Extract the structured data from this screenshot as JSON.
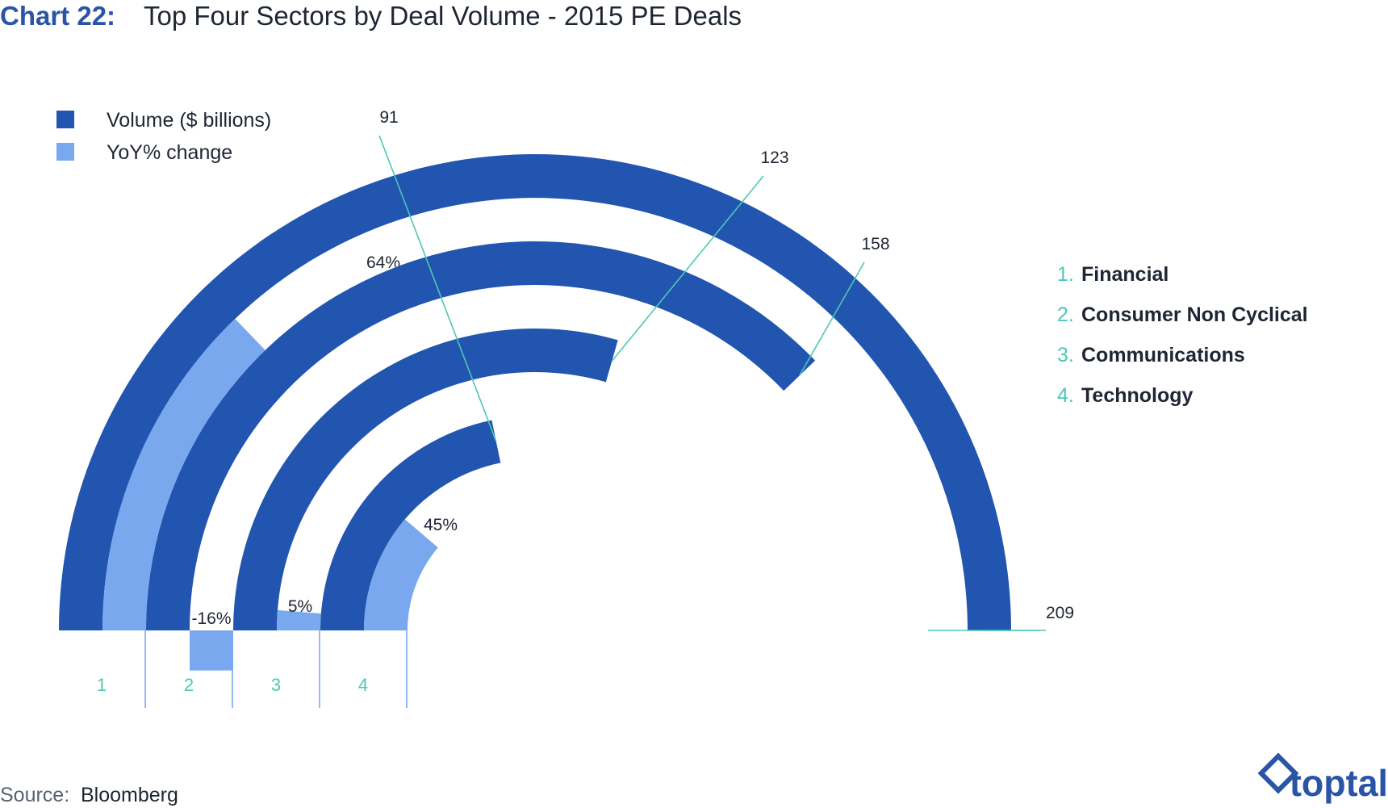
{
  "title": {
    "prefix": "Chart 22:",
    "text": "Top Four Sectors by Deal Volume - 2015 PE Deals"
  },
  "legend": {
    "volume_label": "Volume ($ billions)",
    "yoy_label": "YoY% change"
  },
  "sectors": [
    {
      "num": "1",
      "list_num": "1.",
      "name": "Financial"
    },
    {
      "num": "2",
      "list_num": "2.",
      "name": "Consumer Non Cyclical"
    },
    {
      "num": "3",
      "list_num": "3.",
      "name": "Communications"
    },
    {
      "num": "4",
      "list_num": "4.",
      "name": "Technology"
    }
  ],
  "source": {
    "label": "Source:",
    "value": "Bloomberg"
  },
  "logo": {
    "text": "toptal"
  },
  "colors": {
    "volume": "#2255b0",
    "yoy": "#79a8ef",
    "accent": "#4cc8b4",
    "title_prefix": "#2a54a6",
    "text": "#1f2633"
  },
  "chart_data": {
    "type": "radial-bar",
    "title": "Top Four Sectors by Deal Volume - 2015 PE Deals",
    "categories": [
      "Financial",
      "Consumer Non Cyclical",
      "Communications",
      "Technology"
    ],
    "series": [
      {
        "name": "Volume ($ billions)",
        "values": [
          209,
          158,
          123,
          91
        ],
        "labels": [
          "209",
          "158",
          "123",
          "91"
        ]
      },
      {
        "name": "YoY% change",
        "values": [
          64,
          -16,
          5,
          45
        ],
        "labels": [
          "64%",
          "-16%",
          "5%",
          "45%"
        ]
      }
    ],
    "volume_max": 209,
    "legend_position": "top-left"
  }
}
